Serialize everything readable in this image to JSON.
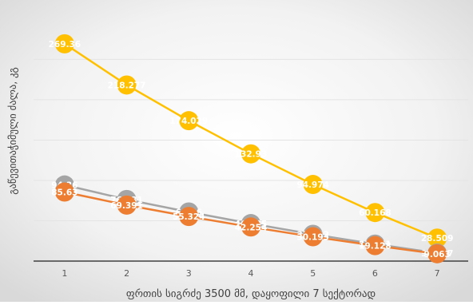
{
  "chart_data": {
    "type": "line",
    "title": "",
    "xlabel": "ფრთის სიგრძე 3500 მმ, დაყოფილი 7 სექტორად",
    "ylabel": "გაწევითაჭიმული ძალა, კგ",
    "categories": [
      "1",
      "2",
      "3",
      "4",
      "5",
      "6",
      "7"
    ],
    "ylim": [
      0,
      290
    ],
    "grid": true,
    "legend": "none",
    "series": [
      {
        "color": "#FFC000",
        "values": [
          269.36,
          218.277,
          174.029,
          132.93,
          94.974,
          60.168,
          28.509
        ],
        "labels": [
          "269.36",
          "218.277",
          "174.029",
          "132.93",
          "94.974",
          "60.168",
          "28.509"
        ]
      },
      {
        "color": "#A5A5A5",
        "values": [
          94.36,
          76.331,
          60.86,
          46.485,
          33.212,
          21.041,
          9.9697
        ],
        "labels": [
          "94.36",
          "76.331",
          "60.86",
          "46.485",
          "33.212",
          "21.041",
          "9.9697"
        ]
      },
      {
        "color": "#ED7D31",
        "values": [
          85.63,
          69.391,
          55.324,
          42.254,
          30.193,
          19.128,
          9.063
        ],
        "labels": [
          "85.63",
          "69.391",
          "55.324",
          "42.254",
          "30.193",
          "19.128",
          "9.063"
        ]
      }
    ]
  }
}
